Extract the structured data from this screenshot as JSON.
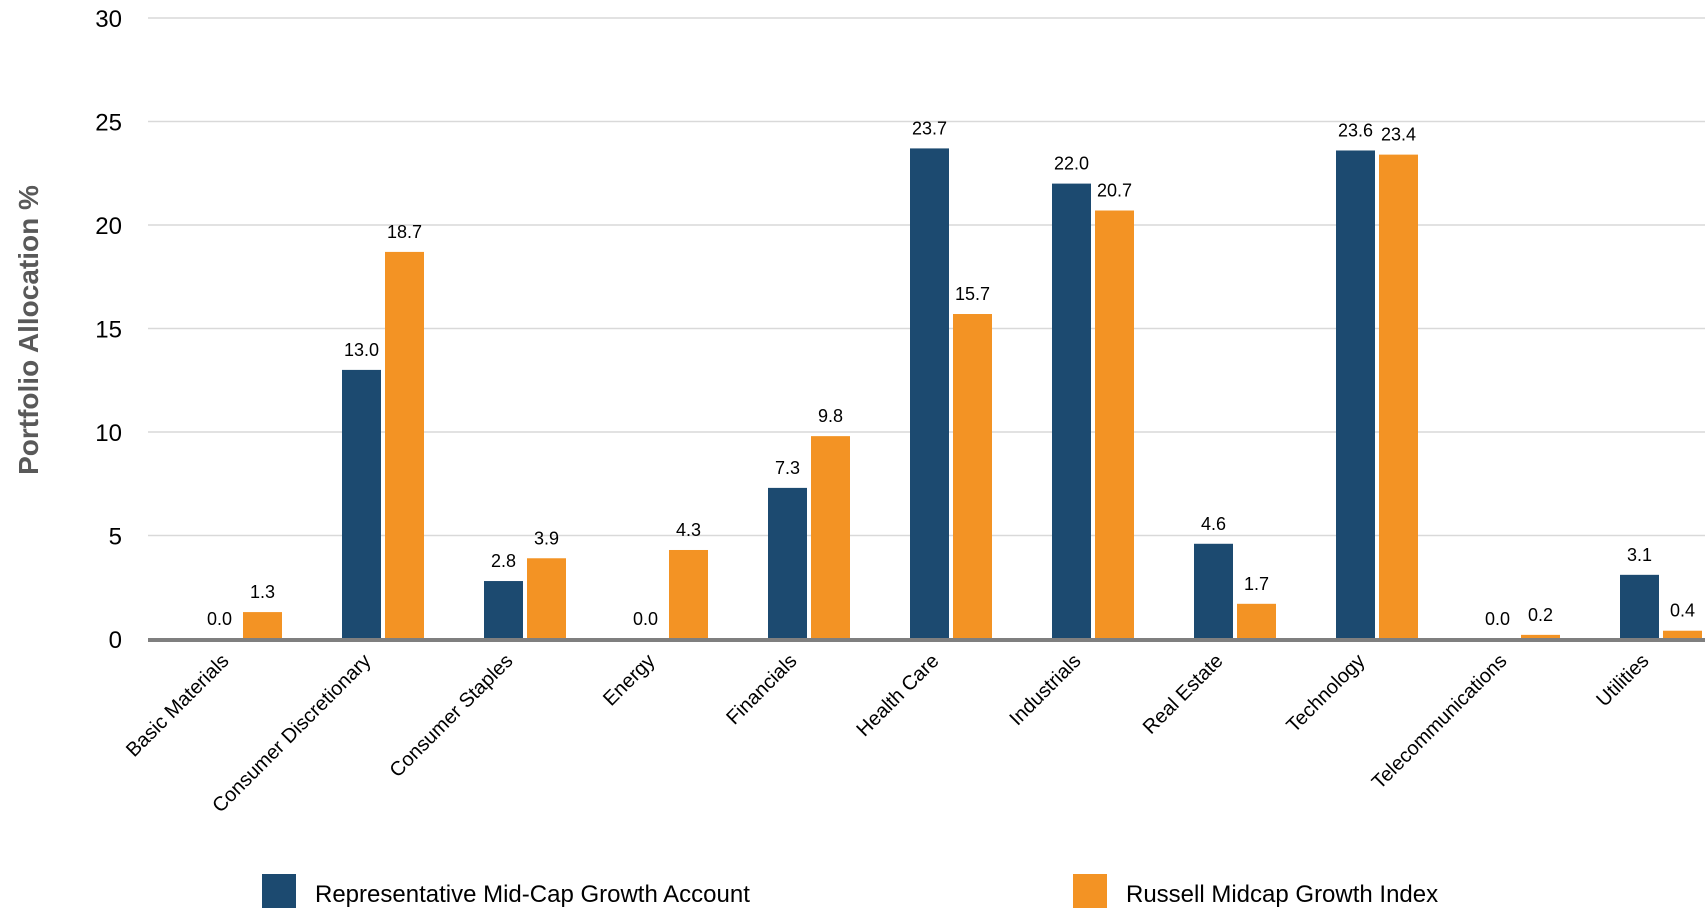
{
  "chart_data": {
    "type": "bar",
    "ylabel": "Portfolio Allocation %",
    "xlabel": "",
    "ylim": [
      0,
      30
    ],
    "yticks": [
      "0",
      "5",
      "10",
      "15",
      "20",
      "25",
      "30"
    ],
    "grid": true,
    "legend_position": "bottom",
    "categories": [
      "Basic Materials",
      "Consumer Discretionary",
      "Consumer Staples",
      "Energy",
      "Financials",
      "Health Care",
      "Industrials",
      "Real Estate",
      "Technology",
      "Telecommunications",
      "Utilities"
    ],
    "series": [
      {
        "name": "Representative Mid-Cap Growth Account",
        "color": "#1c4a70",
        "values": [
          0.0,
          13.0,
          2.8,
          0.0,
          7.3,
          23.7,
          22.0,
          4.6,
          23.6,
          0.0,
          3.1
        ],
        "labels": [
          "0.0",
          "13.0",
          "2.8",
          "0.0",
          "7.3",
          "23.7",
          "22.0",
          "4.6",
          "23.6",
          "0.0",
          "3.1"
        ]
      },
      {
        "name": "Russell Midcap Growth Index",
        "color": "#f39324",
        "values": [
          1.3,
          18.7,
          3.9,
          4.3,
          9.8,
          15.7,
          20.7,
          1.7,
          23.4,
          0.2,
          0.4
        ],
        "labels": [
          "1.3",
          "18.7",
          "3.9",
          "4.3",
          "9.8",
          "15.7",
          "20.7",
          "1.7",
          "23.4",
          "0.2",
          "0.4"
        ]
      }
    ]
  }
}
